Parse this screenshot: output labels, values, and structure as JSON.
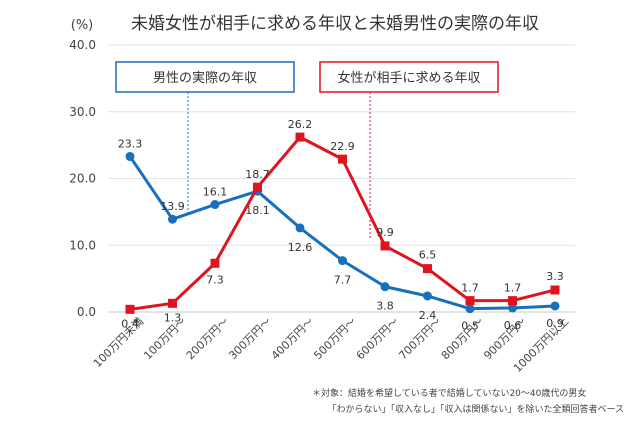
{
  "chart_data": {
    "type": "line",
    "title": "未婚女性が相手に求める年収と未婚男性の実際の年収",
    "unit": "(%)",
    "categories": [
      "100万円未満",
      "100万円〜",
      "200万円〜",
      "300万円〜",
      "400万円〜",
      "500万円〜",
      "600万円〜",
      "700万円〜",
      "800万円〜",
      "900万円〜",
      "1000万円以上"
    ],
    "ylim": [
      0,
      40
    ],
    "yticks": [
      "0.0",
      "10.0",
      "20.0",
      "30.0",
      "40.0"
    ],
    "grid": true,
    "series": [
      {
        "name": "男性の実際の年収",
        "color": "#1a6fbd",
        "marker": "circle",
        "values": [
          23.3,
          13.9,
          16.1,
          18.1,
          12.6,
          7.7,
          3.8,
          2.4,
          0.5,
          0.6,
          0.9
        ],
        "labels": [
          "23.3",
          "13.9",
          "16.1",
          "18.1",
          "12.6",
          "7.7",
          "3.8",
          "2.4",
          "0.5",
          "0.6",
          "0.9"
        ]
      },
      {
        "name": "女性が相手に求める年収",
        "color": "#e0141e",
        "marker": "square",
        "values": [
          0.4,
          1.3,
          7.3,
          18.7,
          26.2,
          22.9,
          9.9,
          6.5,
          1.7,
          1.7,
          3.3
        ],
        "labels": [
          "0.4",
          "1.3",
          "7.3",
          "18.7",
          "26.2",
          "22.9",
          "9.9",
          "6.5",
          "1.7",
          "1.7",
          "3.3"
        ]
      }
    ],
    "note_line1": "＊対象：結婚を希望している者で結婚していない20〜40歳代の男女",
    "note_line2": "「わからない」「収入なし」「収入は関係ない」を除いた全類回答者ベース"
  }
}
